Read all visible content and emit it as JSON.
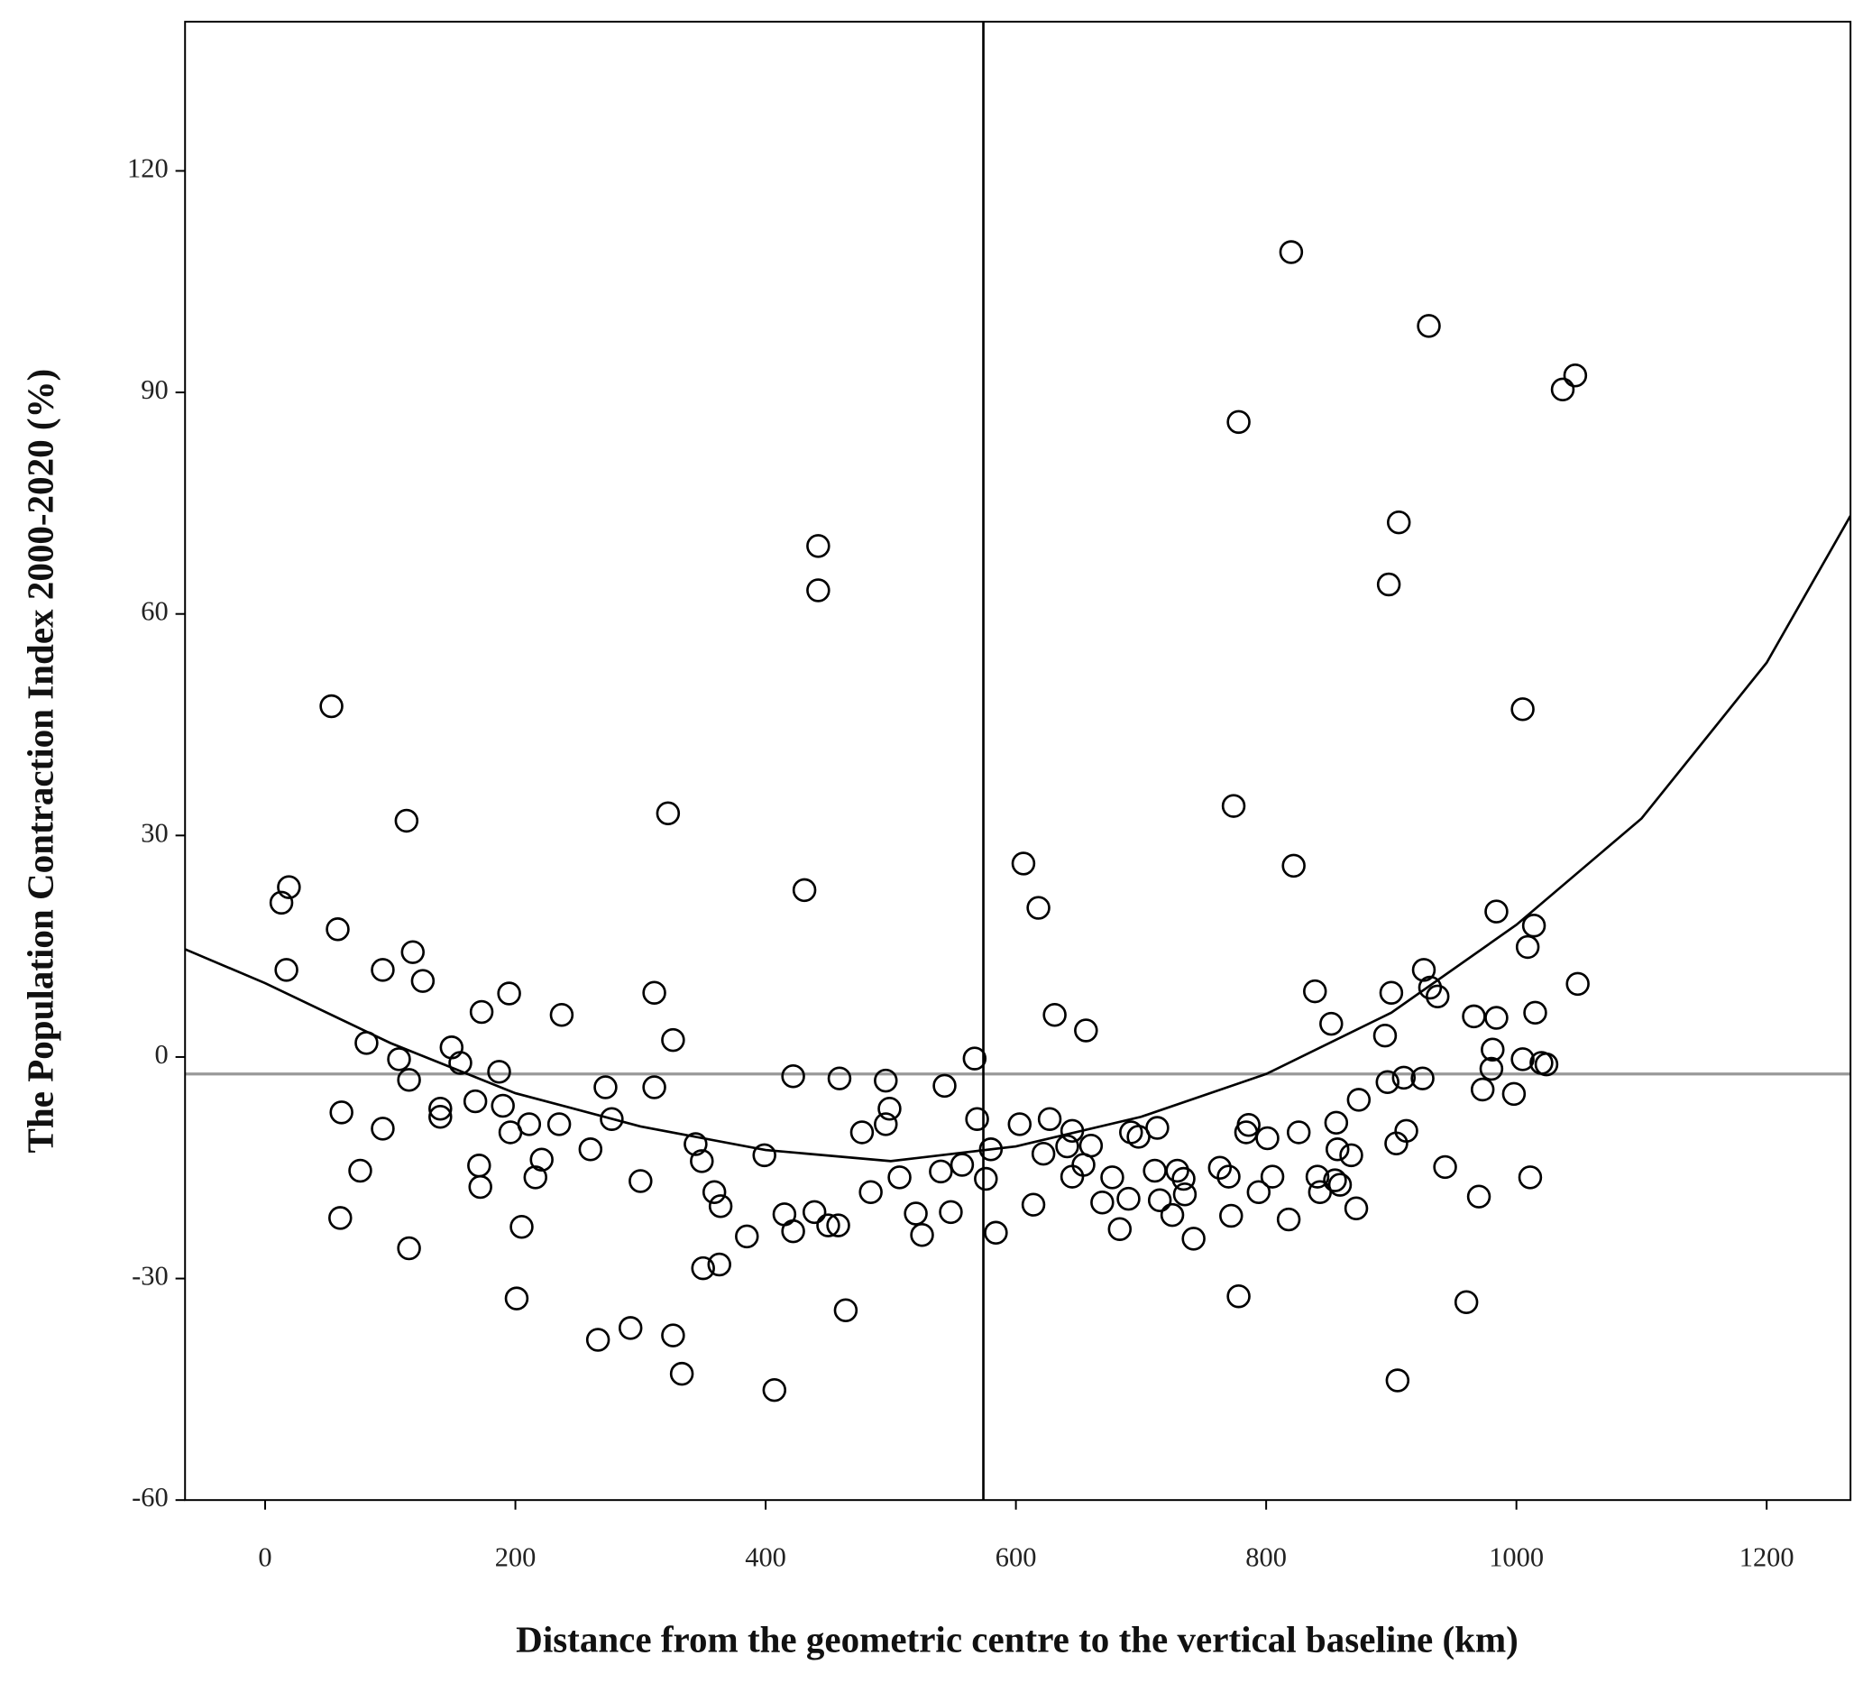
{
  "chart_data": {
    "type": "scatter",
    "x_label": "Distance from the geometric centre to the vertical baseline (km)",
    "y_label": "The  Population Contraction Index 2000-2020 (%)",
    "xlim": [
      -64,
      1267
    ],
    "ylim": [
      -60,
      140.2
    ],
    "xticks": [
      0,
      200,
      400,
      600,
      800,
      1000,
      1200
    ],
    "yticks": [
      -60,
      -30,
      0,
      30,
      60,
      90,
      120
    ],
    "marker_color": "#000000",
    "reference_lines": {
      "x": 574,
      "y": -2.3,
      "x_color": "#000000",
      "y_color": "#999999"
    },
    "x": [
      13,
      19,
      17,
      53,
      58,
      61,
      60,
      76,
      81,
      94,
      94,
      107,
      113,
      115,
      115,
      118,
      126,
      140,
      140,
      149,
      156,
      168,
      171,
      172,
      173,
      187,
      190,
      195,
      196,
      201,
      205,
      211,
      216,
      221,
      235,
      237,
      260,
      266,
      272,
      277,
      292,
      300,
      311,
      311,
      322,
      326,
      326,
      333,
      344,
      349,
      350,
      359,
      363,
      364,
      385,
      399,
      407,
      415,
      422,
      422,
      431,
      439,
      442,
      442,
      450,
      458,
      459,
      464,
      477,
      484,
      496,
      496,
      499,
      507,
      520,
      525,
      540,
      543,
      548,
      557,
      567,
      569,
      576,
      580,
      584,
      603,
      606,
      614,
      618,
      622,
      627,
      631,
      641,
      645,
      645,
      654,
      656,
      660,
      669,
      677,
      683,
      690,
      692,
      698,
      711,
      713,
      715,
      725,
      729,
      734,
      735,
      742,
      763,
      770,
      772,
      774,
      778,
      778,
      784,
      786,
      794,
      801,
      805,
      818,
      820,
      822,
      826,
      839,
      841,
      843,
      852,
      855,
      856,
      857,
      859,
      868,
      872,
      874,
      895,
      897,
      898,
      900,
      904,
      905,
      906,
      910,
      912,
      925,
      926,
      930,
      931,
      937,
      943,
      960,
      966,
      970,
      973,
      980,
      981,
      984,
      984,
      998,
      1005,
      1005,
      1009,
      1011,
      1014,
      1015,
      1020,
      1024,
      1037,
      1047,
      1049
    ],
    "values": [
      20.9,
      23,
      11.8,
      47.5,
      17.3,
      -7.5,
      -21.8,
      -15.4,
      1.9,
      11.8,
      -9.7,
      -0.3,
      32,
      -3.1,
      -25.9,
      14.2,
      10.3,
      -8.1,
      -7,
      1.3,
      -0.8,
      -6,
      -14.7,
      -17.6,
      6.1,
      -2,
      -6.6,
      8.6,
      -10.2,
      -32.7,
      -23,
      -9.1,
      -16.3,
      -13.9,
      -9.1,
      5.7,
      -12.5,
      -38.3,
      -4.1,
      -8.4,
      -36.7,
      -16.8,
      -4.1,
      8.7,
      33,
      2.3,
      -37.7,
      -42.9,
      -11.8,
      -14.1,
      -28.6,
      -18.3,
      -28.1,
      -20.2,
      -24.3,
      -13.3,
      -45.1,
      -21.3,
      -2.6,
      -23.6,
      22.6,
      -21,
      69.2,
      63.2,
      -22.8,
      -22.8,
      -2.9,
      -34.3,
      -10.2,
      -18.3,
      -3.2,
      -9.1,
      -7,
      -16.3,
      -21.2,
      -24.1,
      -15.5,
      -3.9,
      -21,
      -14.6,
      -0.2,
      -8.4,
      -16.5,
      -12.5,
      -23.8,
      -9.1,
      26.2,
      -20,
      20.2,
      -13.1,
      -8.4,
      5.7,
      -12.1,
      -10,
      -16.2,
      -14.6,
      3.6,
      -12,
      -19.7,
      -16.3,
      -23.3,
      -19.2,
      -10.2,
      -10.8,
      -15.4,
      -9.6,
      -19.4,
      -21.4,
      -15.4,
      -16.5,
      -18.6,
      -24.6,
      -15,
      -16.2,
      -21.5,
      34,
      -32.4,
      86,
      -10.2,
      -9.2,
      -18.3,
      -11,
      -16.2,
      -22,
      109,
      25.9,
      -10.2,
      8.9,
      -16.2,
      -18.3,
      4.5,
      -16.7,
      -8.9,
      -12.5,
      -17.3,
      -13.3,
      -20.5,
      -5.8,
      2.9,
      -3.4,
      64,
      8.7,
      -11.7,
      -43.8,
      72.4,
      -2.8,
      -10,
      -2.9,
      11.8,
      99,
      9.4,
      8.2,
      -14.9,
      -33.2,
      5.5,
      -18.9,
      -4.4,
      -1.6,
      1,
      5.3,
      19.7,
      -5,
      47.1,
      -0.3,
      14.9,
      -16.3,
      17.8,
      6,
      -0.8,
      -1,
      90.4,
      92.3,
      9.9
    ],
    "fit": {
      "color": "#000000",
      "x": [
        -64,
        0,
        100,
        200,
        300,
        400,
        500,
        600,
        700,
        800,
        900,
        1000,
        1100,
        1200,
        1267
      ],
      "values": [
        14.6,
        10,
        1.9,
        -4.9,
        -9.4,
        -12.6,
        -14.1,
        -12.1,
        -8.1,
        -2.3,
        6,
        17.9,
        32.3,
        53.4,
        73.3
      ]
    }
  }
}
